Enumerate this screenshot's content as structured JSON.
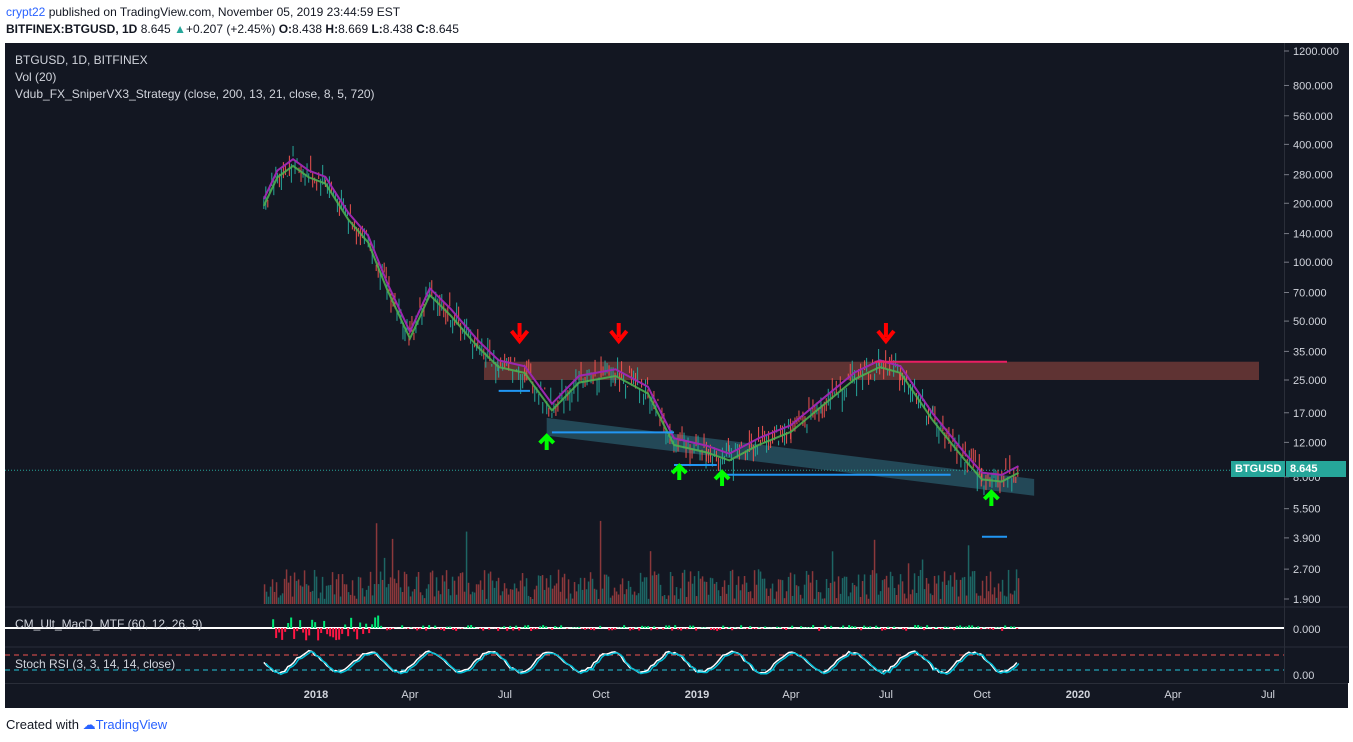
{
  "header": {
    "author": "crypt22",
    "published": "published on TradingView.com, November 05, 2019 23:44:59 EST",
    "symbol": "BITFINEX:BTGUSD, 1D",
    "last": "8.645",
    "change": "+0.207 (+2.45%)",
    "o_label": "O:",
    "o_val": "8.438",
    "h_label": "H:",
    "h_val": "8.669",
    "l_label": "L:",
    "l_val": "8.438",
    "c_label": "C:",
    "c_val": "8.645"
  },
  "legend": {
    "line1": "BTGUSD, 1D, BITFINEX",
    "line2": "Vol (20)",
    "line3": "Vdub_FX_SniperVX3_Strategy (close, 200, 13, 21, close, 8, 5, 720)"
  },
  "macd_label": "CM_Ult_MacD_MTF (60, 12, 26, 9)",
  "rsi_label": "Stoch RSI (3, 3, 14, 14, close)",
  "price_tag": {
    "name": "BTGUSD",
    "value": "8.645"
  },
  "footer": {
    "created": "Created with",
    "brand": "TradingView"
  },
  "colors": {
    "bg": "#131722",
    "up": "#26a69a",
    "down": "#ef5350",
    "resistance": "#7a3d3a",
    "wedge": "#2b5e6e",
    "support": "#2196f3",
    "ema": "#9c27b0",
    "arrow_up": "#00ff00",
    "arrow_down": "#ff0000"
  },
  "chart_data": {
    "type": "candlestick",
    "scale": "log",
    "y_ticks": [
      "1200.000",
      "800.000",
      "560.000",
      "400.000",
      "280.000",
      "200.000",
      "140.000",
      "100.000",
      "70.000",
      "50.000",
      "35.000",
      "25.000",
      "17.000",
      "12.000",
      "8.000",
      "5.500",
      "3.900",
      "2.700",
      "1.900"
    ],
    "macd_ticks": [
      "0.000"
    ],
    "rsi_ticks": [
      "0.00"
    ],
    "x_ticks": [
      "2018",
      "Apr",
      "Jul",
      "Oct",
      "2019",
      "Apr",
      "Jul",
      "Oct",
      "2020",
      "Apr",
      "Jul"
    ],
    "price_path": [
      {
        "d": "2017-11-12",
        "v": 200
      },
      {
        "d": "2017-11-25",
        "v": 280
      },
      {
        "d": "2017-12-10",
        "v": 320
      },
      {
        "d": "2017-12-25",
        "v": 280
      },
      {
        "d": "2018-01-10",
        "v": 260
      },
      {
        "d": "2018-02-01",
        "v": 170
      },
      {
        "d": "2018-02-20",
        "v": 130
      },
      {
        "d": "2018-03-10",
        "v": 75
      },
      {
        "d": "2018-04-01",
        "v": 42
      },
      {
        "d": "2018-04-20",
        "v": 70
      },
      {
        "d": "2018-05-10",
        "v": 55
      },
      {
        "d": "2018-06-05",
        "v": 38
      },
      {
        "d": "2018-06-25",
        "v": 30
      },
      {
        "d": "2018-07-20",
        "v": 28
      },
      {
        "d": "2018-08-15",
        "v": 18
      },
      {
        "d": "2018-09-10",
        "v": 25
      },
      {
        "d": "2018-10-15",
        "v": 27
      },
      {
        "d": "2018-11-15",
        "v": 22
      },
      {
        "d": "2018-12-10",
        "v": 12
      },
      {
        "d": "2019-01-10",
        "v": 11
      },
      {
        "d": "2019-02-01",
        "v": 10
      },
      {
        "d": "2019-03-01",
        "v": 12
      },
      {
        "d": "2019-04-01",
        "v": 14
      },
      {
        "d": "2019-05-01",
        "v": 19
      },
      {
        "d": "2019-06-01",
        "v": 26
      },
      {
        "d": "2019-06-25",
        "v": 30
      },
      {
        "d": "2019-07-15",
        "v": 28
      },
      {
        "d": "2019-08-15",
        "v": 16
      },
      {
        "d": "2019-09-15",
        "v": 10
      },
      {
        "d": "2019-10-01",
        "v": 8
      },
      {
        "d": "2019-10-20",
        "v": 7.8
      },
      {
        "d": "2019-11-05",
        "v": 8.645
      }
    ],
    "resistance_zone": {
      "low": 25,
      "high": 31
    },
    "support_levels": [
      {
        "level": 22,
        "from": "2018-06-25",
        "to": "2018-07-25"
      },
      {
        "level": 13.5,
        "from": "2018-08-15",
        "to": "2018-12-10"
      },
      {
        "level": 9.2,
        "from": "2018-12-10",
        "to": "2019-01-20"
      },
      {
        "level": 8.2,
        "from": "2019-01-20",
        "to": "2019-09-01"
      },
      {
        "level": 3.95,
        "from": "2019-10-01",
        "to": "2019-10-25"
      }
    ],
    "resistance_lines": [
      {
        "level": 31,
        "from": "2019-06-20",
        "to": "2019-10-25"
      }
    ],
    "sell_signals": [
      "2018-07-15",
      "2018-10-18",
      "2019-07-01"
    ],
    "buy_signals": [
      "2018-08-10",
      "2018-12-15",
      "2019-01-25",
      "2019-10-10"
    ],
    "last_price": 8.645
  }
}
